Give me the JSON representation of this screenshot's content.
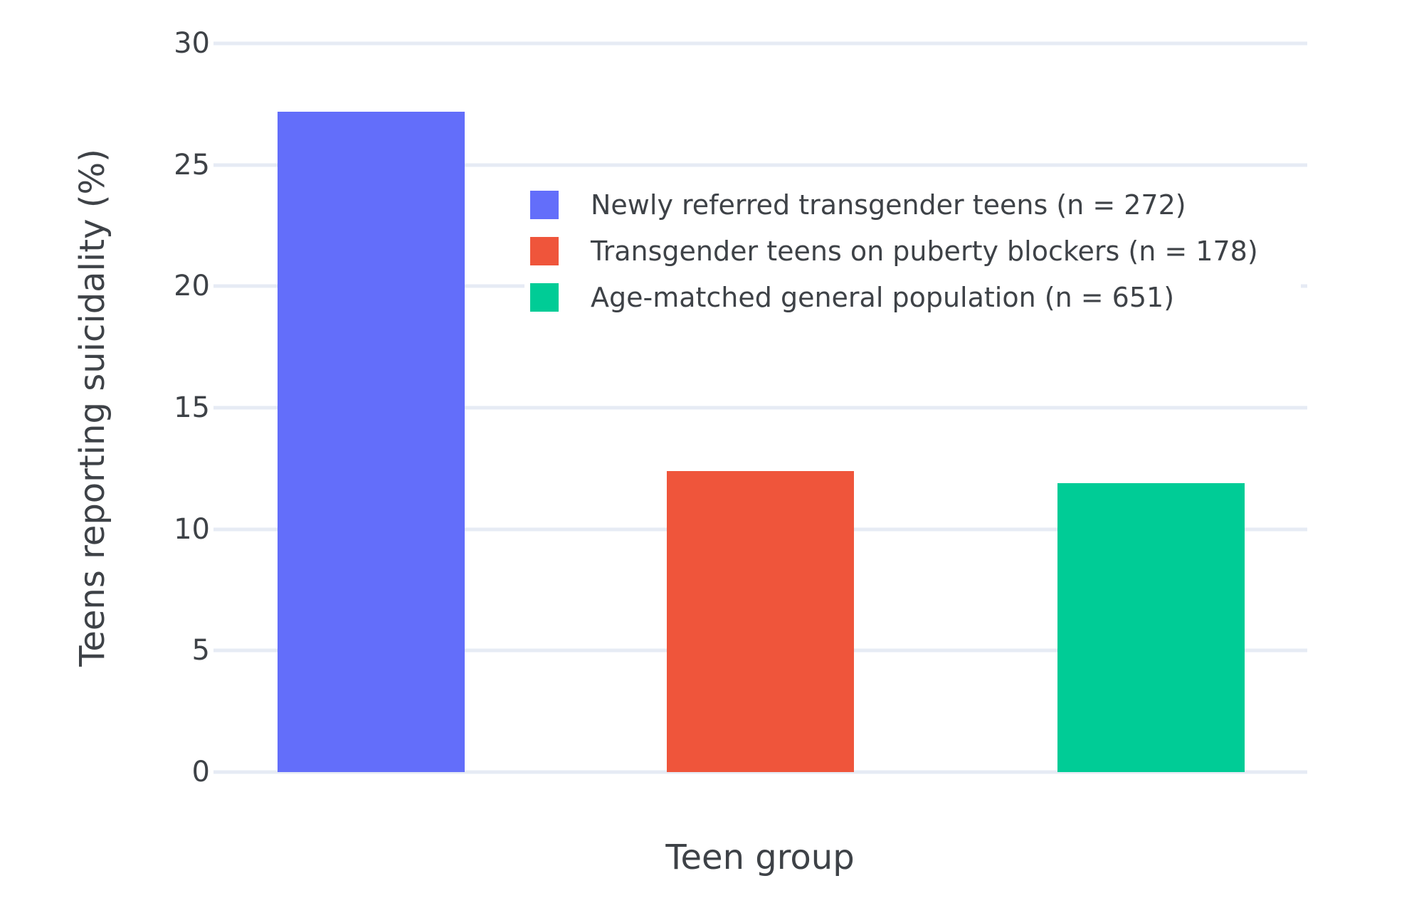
{
  "chart_data": {
    "type": "bar",
    "title": "",
    "xlabel": "Teen group",
    "ylabel": "Teens reporting suicidality (%)",
    "ylim": [
      0,
      30
    ],
    "yticks": [
      0,
      5,
      10,
      15,
      20,
      25,
      30
    ],
    "grid": true,
    "legend_position": "inside top-center",
    "x_tick_labels_shown": false,
    "categories": [
      "Newly referred transgender teens (n = 272)",
      "Transgender teens on puberty blockers (n = 178)",
      "Age-matched general population (n = 651)"
    ],
    "values": [
      27.2,
      12.4,
      11.9
    ],
    "bars": [
      {
        "label": "Newly referred transgender teens (n = 272)",
        "value": 27.2,
        "color": "#636EFA"
      },
      {
        "label": "Transgender teens on puberty blockers (n = 178)",
        "value": 12.4,
        "color": "#EF553B"
      },
      {
        "label": "Age-matched general population (n = 651)",
        "value": 11.9,
        "color": "#00CC96"
      }
    ],
    "colors": {
      "bar_blue": "#636EFA",
      "bar_red": "#EF553B",
      "bar_green": "#00CC96",
      "gridline": "#e6ebf4",
      "text": "#3e4247",
      "background": "#ffffff"
    }
  },
  "legend": {
    "entries": [
      {
        "label": "Newly referred transgender teens (n = 272)",
        "color": "#636EFA"
      },
      {
        "label": "Transgender teens on puberty blockers (n = 178)",
        "color": "#EF553B"
      },
      {
        "label": "Age-matched general population (n = 651)",
        "color": "#00CC96"
      }
    ]
  }
}
